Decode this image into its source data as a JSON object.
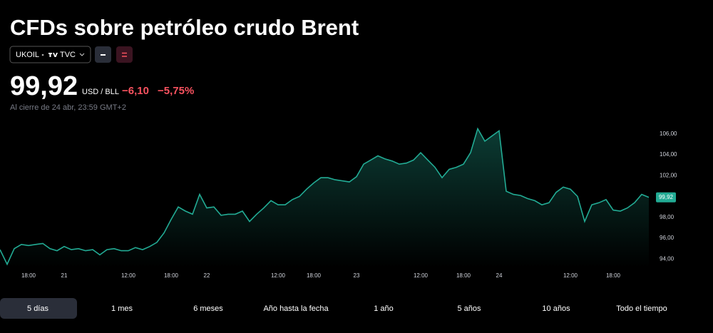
{
  "header": {
    "title": "CFDs sobre petróleo crudo Brent",
    "symbol": "UKOIL",
    "exchange": "TVC",
    "price": "99,92",
    "unit": "USD / BLL",
    "change": "−6,10",
    "change_percent": "−5,75%",
    "close_note": "Al cierre de 24 abr, 23:59 GMT+2"
  },
  "chart_data": {
    "type": "area",
    "color": "#22ab94",
    "categories": [
      null,
      null,
      null,
      null,
      "18:00",
      null,
      null,
      null,
      null,
      "21",
      null,
      null,
      null,
      null,
      null,
      null,
      null,
      null,
      "12:00",
      null,
      null,
      null,
      null,
      null,
      "18:00",
      null,
      null,
      null,
      null,
      "22",
      null,
      null,
      null,
      null,
      null,
      null,
      null,
      null,
      null,
      "12:00",
      null,
      null,
      null,
      null,
      "18:00",
      null,
      null,
      null,
      null,
      null,
      "23",
      null,
      null,
      null,
      null,
      null,
      null,
      null,
      null,
      "12:00",
      null,
      null,
      null,
      null,
      null,
      "18:00",
      null,
      null,
      null,
      null,
      "24",
      null,
      null,
      null,
      null,
      null,
      null,
      null,
      null,
      null,
      "12:00",
      null,
      null,
      null,
      null,
      null,
      "18:00",
      null,
      null,
      null,
      null,
      null
    ],
    "values": [
      94.9,
      93.5,
      95.0,
      95.4,
      95.3,
      95.4,
      95.5,
      95.0,
      94.8,
      95.2,
      94.9,
      95.0,
      94.8,
      94.9,
      94.4,
      94.9,
      95.0,
      94.8,
      94.8,
      95.1,
      94.9,
      95.2,
      95.6,
      96.5,
      97.8,
      99.0,
      98.6,
      98.3,
      100.2,
      98.9,
      99.0,
      98.2,
      98.3,
      98.3,
      98.6,
      97.6,
      98.3,
      98.9,
      99.6,
      99.2,
      99.2,
      99.7,
      100.0,
      100.7,
      101.3,
      101.8,
      101.8,
      101.6,
      101.5,
      101.4,
      101.9,
      103.1,
      103.5,
      103.9,
      103.6,
      103.4,
      103.1,
      103.2,
      103.5,
      104.2,
      103.5,
      102.8,
      101.8,
      102.6,
      102.8,
      103.1,
      104.2,
      106.5,
      105.3,
      105.8,
      106.3,
      100.5,
      100.2,
      100.1,
      99.8,
      99.6,
      99.2,
      99.4,
      100.4,
      100.9,
      100.7,
      100.0,
      97.6,
      99.2,
      99.4,
      99.7,
      98.7,
      98.6,
      98.9,
      99.4,
      100.2,
      99.92
    ],
    "ylim": [
      93.2,
      107.9
    ],
    "yticks": [
      {
        "value": 94,
        "label": "94,00"
      },
      {
        "value": 96,
        "label": "96,00"
      },
      {
        "value": 98,
        "label": "98,00"
      },
      {
        "value": 102,
        "label": "102,00"
      },
      {
        "value": 104,
        "label": "104,00"
      },
      {
        "value": 106,
        "label": "106,00"
      }
    ]
  },
  "tabs": [
    "5 días",
    "1 mes",
    "6 meses",
    "Año hasta la fecha",
    "1 año",
    "5 años",
    "10 años",
    "Todo el tiempo"
  ]
}
